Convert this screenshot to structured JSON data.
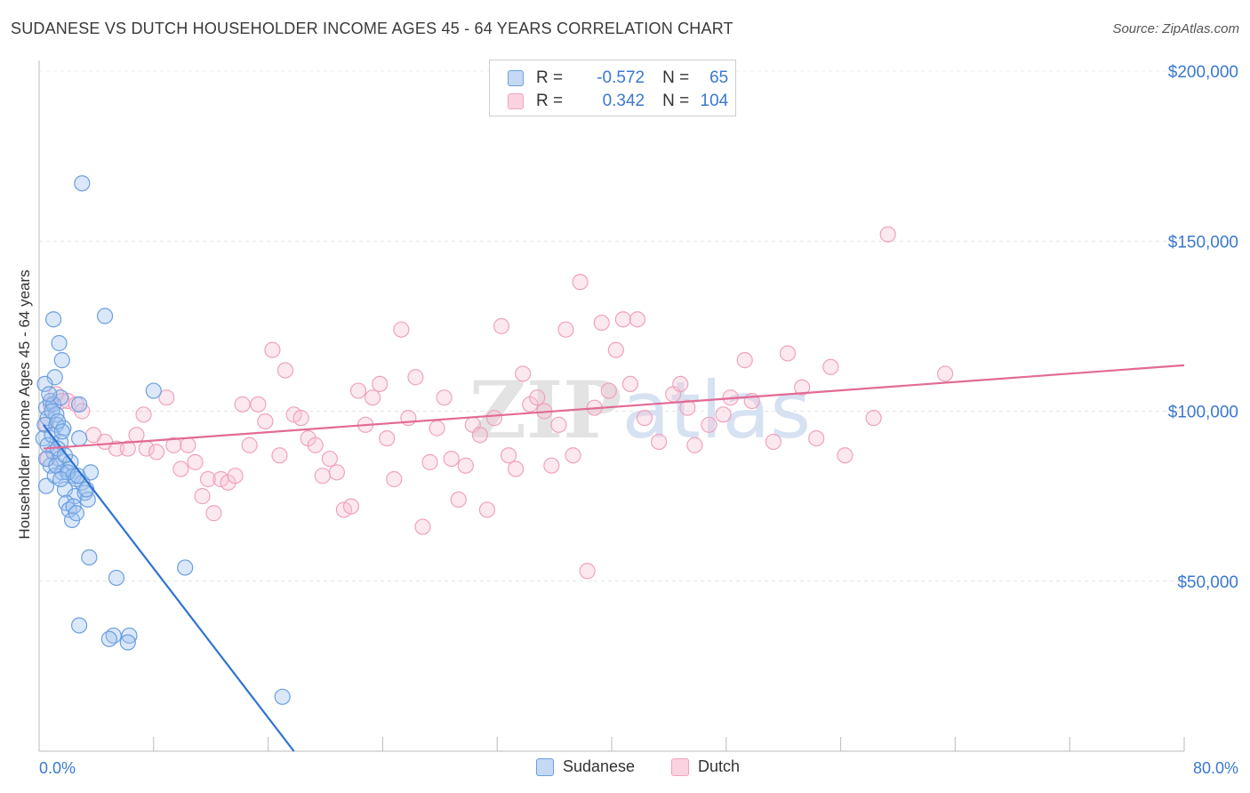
{
  "title": "SUDANESE VS DUTCH HOUSEHOLDER INCOME AGES 45 - 64 YEARS CORRELATION CHART",
  "source": "Source: ZipAtlas.com",
  "watermark": "ZIPatlas",
  "legend": {
    "r_label": "R =",
    "n_label": "N =",
    "rows": [
      {
        "name": "Sudanese",
        "r": "-0.572",
        "n": "65"
      },
      {
        "name": "Dutch",
        "r": "0.342",
        "n": "104"
      }
    ]
  },
  "chart_data": {
    "type": "scatter",
    "title": "SUDANESE VS DUTCH HOUSEHOLDER INCOME AGES 45 - 64 YEARS CORRELATION CHART",
    "xlabel": "",
    "ylabel": "Householder Income Ages 45 - 64 years",
    "xlim": [
      0,
      80
    ],
    "ylim": [
      0,
      200000
    ],
    "x_tick_labels": [
      "0.0%",
      "80.0%"
    ],
    "y_ticks": [
      50000,
      100000,
      150000,
      200000
    ],
    "y_tick_labels": [
      "$50,000",
      "$100,000",
      "$150,000",
      "$200,000"
    ],
    "grid": true,
    "legend_position": "top-center",
    "colors": {
      "Sudanese": "#6a9fe0",
      "Dutch": "#f0a2bd",
      "Sudanese_line": "#2d72d2",
      "Dutch_line": "#e26a95"
    },
    "series": [
      {
        "name": "Sudanese",
        "points": [
          [
            0.5,
            101000
          ],
          [
            0.6,
            98000
          ],
          [
            0.4,
            96000
          ],
          [
            0.8,
            103000
          ],
          [
            1.0,
            102000
          ],
          [
            1.2,
            99000
          ],
          [
            1.5,
            104000
          ],
          [
            0.3,
            92000
          ],
          [
            0.6,
            90000
          ],
          [
            1.0,
            88000
          ],
          [
            1.4,
            86000
          ],
          [
            0.8,
            84000
          ],
          [
            1.6,
            82000
          ],
          [
            2.0,
            83000
          ],
          [
            2.4,
            81000
          ],
          [
            3.0,
            79000
          ],
          [
            0.5,
            78000
          ],
          [
            1.8,
            77000
          ],
          [
            2.5,
            75000
          ],
          [
            3.2,
            76000
          ],
          [
            1.9,
            73000
          ],
          [
            2.1,
            71000
          ],
          [
            2.3,
            68000
          ],
          [
            3.4,
            74000
          ],
          [
            1.2,
            96000
          ],
          [
            1.7,
            95000
          ],
          [
            0.9,
            93000
          ],
          [
            2.8,
            92000
          ],
          [
            1.1,
            110000
          ],
          [
            1.6,
            115000
          ],
          [
            1.4,
            120000
          ],
          [
            1.0,
            127000
          ],
          [
            4.6,
            128000
          ],
          [
            3.0,
            167000
          ],
          [
            8.0,
            106000
          ],
          [
            2.8,
            102000
          ],
          [
            1.5,
            91000
          ],
          [
            1.3,
            89000
          ],
          [
            2.2,
            85000
          ],
          [
            3.6,
            82000
          ],
          [
            1.1,
            81000
          ],
          [
            2.6,
            80000
          ],
          [
            3.5,
            57000
          ],
          [
            5.4,
            51000
          ],
          [
            2.8,
            37000
          ],
          [
            5.2,
            34000
          ],
          [
            6.3,
            34000
          ],
          [
            4.9,
            33000
          ],
          [
            6.2,
            32000
          ],
          [
            10.2,
            54000
          ],
          [
            17.0,
            16000
          ],
          [
            0.4,
            108000
          ],
          [
            0.7,
            105000
          ],
          [
            0.9,
            100000
          ],
          [
            1.3,
            97000
          ],
          [
            1.6,
            94000
          ],
          [
            0.5,
            86000
          ],
          [
            1.2,
            84000
          ],
          [
            1.8,
            87000
          ],
          [
            2.0,
            82000
          ],
          [
            2.7,
            81000
          ],
          [
            1.5,
            80000
          ],
          [
            2.4,
            72000
          ],
          [
            2.6,
            70000
          ],
          [
            3.3,
            77000
          ]
        ],
        "trend": [
          [
            0.3,
            96000
          ],
          [
            17.8,
            0
          ]
        ]
      },
      {
        "name": "Dutch",
        "points": [
          [
            0.8,
            102000
          ],
          [
            1.2,
            105000
          ],
          [
            1.6,
            103000
          ],
          [
            2.0,
            103000
          ],
          [
            2.6,
            102000
          ],
          [
            3.0,
            100000
          ],
          [
            0.5,
            96000
          ],
          [
            1.0,
            88000
          ],
          [
            0.6,
            86000
          ],
          [
            3.8,
            93000
          ],
          [
            4.6,
            91000
          ],
          [
            5.4,
            89000
          ],
          [
            6.2,
            89000
          ],
          [
            6.8,
            93000
          ],
          [
            7.3,
            99000
          ],
          [
            7.5,
            89000
          ],
          [
            8.2,
            88000
          ],
          [
            8.9,
            104000
          ],
          [
            9.4,
            90000
          ],
          [
            9.9,
            83000
          ],
          [
            10.4,
            90000
          ],
          [
            10.9,
            85000
          ],
          [
            11.4,
            75000
          ],
          [
            11.8,
            80000
          ],
          [
            12.2,
            70000
          ],
          [
            12.7,
            80000
          ],
          [
            13.2,
            79000
          ],
          [
            13.7,
            81000
          ],
          [
            14.2,
            102000
          ],
          [
            14.7,
            90000
          ],
          [
            15.3,
            102000
          ],
          [
            15.8,
            97000
          ],
          [
            16.3,
            118000
          ],
          [
            16.8,
            87000
          ],
          [
            17.2,
            112000
          ],
          [
            17.8,
            99000
          ],
          [
            18.3,
            98000
          ],
          [
            18.8,
            92000
          ],
          [
            19.3,
            90000
          ],
          [
            19.8,
            81000
          ],
          [
            20.3,
            86000
          ],
          [
            20.8,
            82000
          ],
          [
            21.3,
            71000
          ],
          [
            21.8,
            72000
          ],
          [
            22.3,
            106000
          ],
          [
            22.8,
            96000
          ],
          [
            23.3,
            104000
          ],
          [
            23.8,
            108000
          ],
          [
            24.3,
            92000
          ],
          [
            24.8,
            80000
          ],
          [
            25.3,
            124000
          ],
          [
            25.8,
            98000
          ],
          [
            26.3,
            110000
          ],
          [
            26.8,
            66000
          ],
          [
            27.3,
            85000
          ],
          [
            27.8,
            95000
          ],
          [
            28.3,
            104000
          ],
          [
            28.8,
            86000
          ],
          [
            29.3,
            74000
          ],
          [
            29.8,
            84000
          ],
          [
            30.3,
            96000
          ],
          [
            30.8,
            93000
          ],
          [
            31.3,
            71000
          ],
          [
            31.8,
            98000
          ],
          [
            32.3,
            125000
          ],
          [
            32.8,
            87000
          ],
          [
            33.3,
            83000
          ],
          [
            33.8,
            111000
          ],
          [
            34.3,
            102000
          ],
          [
            34.8,
            104000
          ],
          [
            35.3,
            100000
          ],
          [
            35.8,
            84000
          ],
          [
            36.3,
            96000
          ],
          [
            36.8,
            124000
          ],
          [
            37.3,
            87000
          ],
          [
            37.8,
            138000
          ],
          [
            38.3,
            53000
          ],
          [
            38.8,
            101000
          ],
          [
            39.3,
            126000
          ],
          [
            39.8,
            106000
          ],
          [
            40.3,
            118000
          ],
          [
            40.8,
            127000
          ],
          [
            41.3,
            108000
          ],
          [
            41.8,
            127000
          ],
          [
            42.3,
            98000
          ],
          [
            43.3,
            91000
          ],
          [
            44.3,
            105000
          ],
          [
            44.8,
            108000
          ],
          [
            45.3,
            101000
          ],
          [
            45.8,
            90000
          ],
          [
            46.8,
            96000
          ],
          [
            47.8,
            99000
          ],
          [
            48.3,
            104000
          ],
          [
            49.3,
            115000
          ],
          [
            49.8,
            103000
          ],
          [
            51.3,
            91000
          ],
          [
            52.3,
            117000
          ],
          [
            53.3,
            107000
          ],
          [
            54.3,
            92000
          ],
          [
            55.3,
            113000
          ],
          [
            56.3,
            87000
          ],
          [
            58.3,
            98000
          ],
          [
            59.3,
            152000
          ],
          [
            63.3,
            111000
          ]
        ],
        "trend": [
          [
            0.3,
            89000
          ],
          [
            80.0,
            113500
          ]
        ]
      }
    ]
  }
}
